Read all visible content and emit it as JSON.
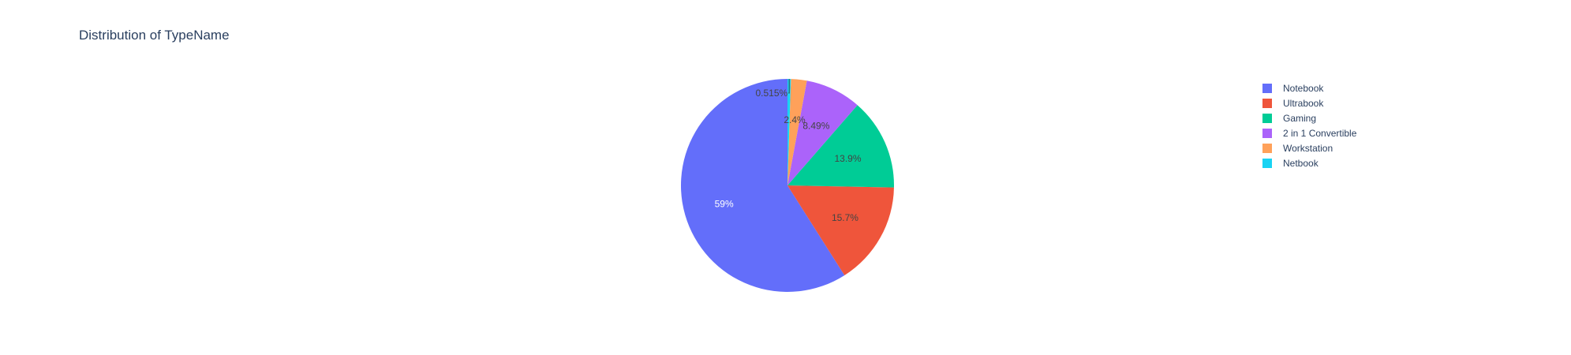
{
  "chart_data": {
    "type": "pie",
    "title": "Distribution of TypeName",
    "categories": [
      "Notebook",
      "Ultrabook",
      "Gaming",
      "2 in 1 Convertible",
      "Workstation",
      "Netbook"
    ],
    "values": [
      59,
      15.7,
      13.9,
      8.49,
      2.4,
      0.515
    ],
    "labels": [
      "59%",
      "15.7%",
      "13.9%",
      "8.49%",
      "2.4%",
      "0.515%"
    ],
    "colors": [
      "#636efa",
      "#ef553b",
      "#00cc96",
      "#ab63fa",
      "#ffa15a",
      "#19d3f3"
    ],
    "label_colors": [
      "#ffffff",
      "#444444",
      "#444444",
      "#444444",
      "#444444",
      "#444444"
    ],
    "direction": "clockwise",
    "start_angle": "top",
    "legend_position": "top-right"
  }
}
